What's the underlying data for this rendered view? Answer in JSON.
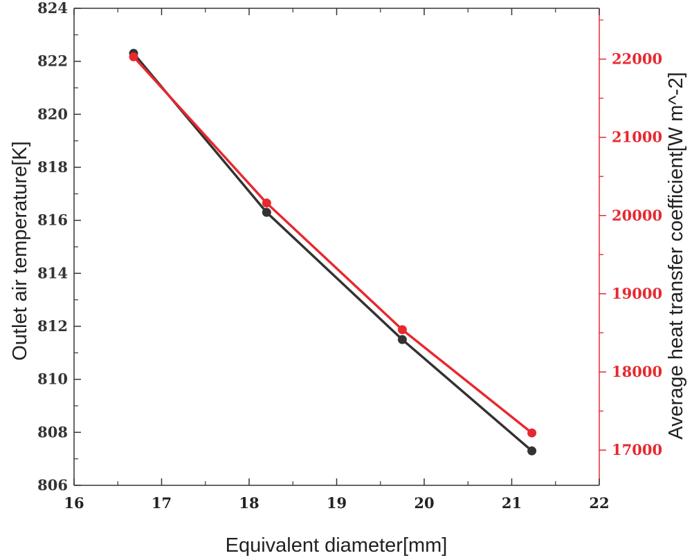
{
  "chart_data": {
    "type": "line",
    "xlabel": "Equivalent diameter[mm]",
    "ylabel_left": "Outlet air temperature[K]",
    "ylabel_right": "Average heat transfer coefficient[W m^-2]",
    "xlim": [
      16,
      22
    ],
    "ylim_left": [
      806,
      824
    ],
    "ylim_right": [
      16550,
      22650
    ],
    "x_ticks": [
      "16",
      "17",
      "18",
      "19",
      "20",
      "21",
      "22"
    ],
    "y_left_ticks": [
      "806",
      "808",
      "810",
      "812",
      "814",
      "816",
      "818",
      "820",
      "822",
      "824"
    ],
    "y_right_ticks": [
      "17000",
      "18000",
      "19000",
      "20000",
      "21000",
      "22000"
    ],
    "grid": false,
    "colors": {
      "left_series": "#333333",
      "right_series": "#e8282f",
      "right_axis": "#e8282f"
    },
    "series": [
      {
        "axis": "left",
        "x": [
          16.68,
          18.2,
          19.75,
          21.23
        ],
        "values": [
          822.3,
          816.3,
          811.5,
          807.3
        ]
      },
      {
        "axis": "right",
        "x": [
          16.68,
          18.2,
          19.75,
          21.23
        ],
        "values": [
          22030,
          20160,
          18540,
          17220
        ]
      }
    ]
  }
}
